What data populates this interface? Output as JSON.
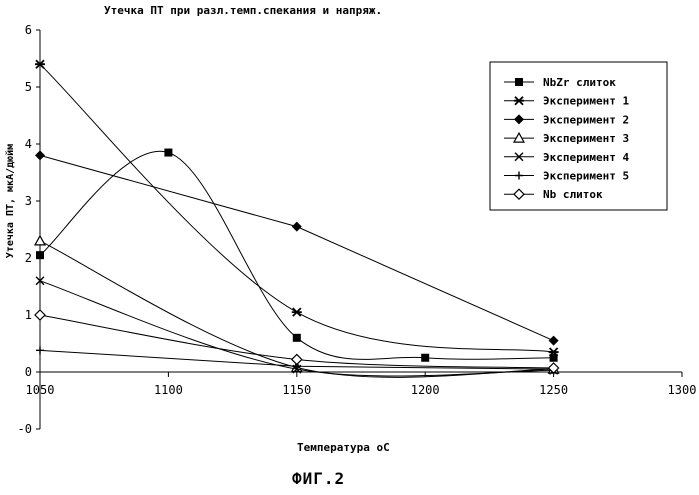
{
  "figure_label": "ФИГ.2",
  "chart_data": {
    "type": "line",
    "title": "Утечка ПТ при разл.темп.спекания и напряж.",
    "xlabel": "Температура oC",
    "ylabel": "Утечка ПТ, мкА/дюйм",
    "xlim": [
      1050,
      1300
    ],
    "ylim": [
      -1,
      6
    ],
    "x_ticks": [
      "1050",
      "1100",
      "1150",
      "1200",
      "1250",
      "1300"
    ],
    "y_ticks": [
      "6",
      "5",
      "4",
      "3",
      "2",
      "1",
      "0",
      "-1"
    ],
    "y_tick_labels": [
      "6",
      "5",
      "4",
      "3",
      "2",
      "1",
      "0",
      "-0"
    ],
    "grid": false,
    "legend_position": "top-right",
    "series": [
      {
        "name": "NbZr слиток",
        "marker": "square-filled",
        "smooth": true,
        "points": [
          [
            1050,
            2.05
          ],
          [
            1100,
            3.85
          ],
          [
            1150,
            0.6
          ],
          [
            1200,
            0.25
          ],
          [
            1250,
            0.25
          ]
        ]
      },
      {
        "name": "Эксперимент 1",
        "marker": "star",
        "smooth": true,
        "points": [
          [
            1050,
            5.4
          ],
          [
            1150,
            1.05
          ],
          [
            1250,
            0.35
          ]
        ]
      },
      {
        "name": "Эксперимент 2",
        "marker": "diamond-filled",
        "smooth": false,
        "points": [
          [
            1050,
            3.8
          ],
          [
            1150,
            2.55
          ],
          [
            1250,
            0.55
          ]
        ]
      },
      {
        "name": "Эксперимент 3",
        "marker": "triangle-open",
        "smooth": true,
        "points": [
          [
            1050,
            2.3
          ],
          [
            1150,
            0.08
          ],
          [
            1250,
            0.05
          ]
        ]
      },
      {
        "name": "Эксперимент 4",
        "marker": "x",
        "smooth": true,
        "points": [
          [
            1050,
            1.6
          ],
          [
            1150,
            0.05
          ],
          [
            1250,
            0.03
          ]
        ]
      },
      {
        "name": "Эксперимент 5",
        "marker": "plus",
        "smooth": false,
        "points": [
          [
            1050,
            0.38
          ],
          [
            1150,
            0.1
          ],
          [
            1250,
            0.05
          ]
        ]
      },
      {
        "name": "Nb слиток",
        "marker": "diamond-open",
        "smooth": true,
        "points": [
          [
            1050,
            1.0
          ],
          [
            1150,
            0.22
          ],
          [
            1250,
            0.07
          ]
        ]
      }
    ]
  }
}
